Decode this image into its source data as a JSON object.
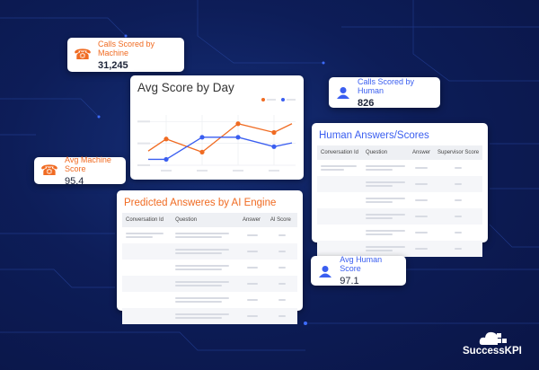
{
  "colors": {
    "accent_orange": "#f06b22",
    "accent_blue": "#3a5ef0",
    "background": "#0d1d58"
  },
  "kpis": {
    "calls_machine": {
      "label": "Calls Scored by Machine",
      "value": "31,245",
      "icon": "phone-icon"
    },
    "calls_human": {
      "label": "Calls Scored by Human",
      "value": "826",
      "icon": "person-icon"
    },
    "avg_machine": {
      "label": "Avg Machine Score",
      "value": "95.4",
      "icon": "phone-icon"
    },
    "avg_human": {
      "label": "Avg Human Score",
      "value": "97.1",
      "icon": "person-icon"
    }
  },
  "chart_card": {
    "title": "Avg Score by Day"
  },
  "chart_data": {
    "type": "line",
    "title": "Avg Score by Day",
    "x": [
      0.5,
      1,
      2,
      3,
      4,
      4.5
    ],
    "series": [
      {
        "color": "#f06b22",
        "values": [
          0.65,
          1.2,
          0.6,
          1.9,
          1.5,
          1.9
        ]
      },
      {
        "color": "#3a5ef0",
        "values": [
          0.27,
          0.27,
          1.28,
          1.28,
          0.85,
          1.02
        ]
      }
    ],
    "ylim": [
      0,
      2.3
    ],
    "grid": true,
    "legend": "top-right"
  },
  "human_table": {
    "title": "Human Answers/Scores",
    "columns": [
      "Conversation Id",
      "Question",
      "Answer",
      "Supervisor Score"
    ]
  },
  "ai_table": {
    "title": "Predicted Answeres by AI Engine",
    "columns": [
      "Conversation Id",
      "Question",
      "Answer",
      "AI Score"
    ]
  },
  "logo": {
    "text": "SuccessKPI"
  }
}
